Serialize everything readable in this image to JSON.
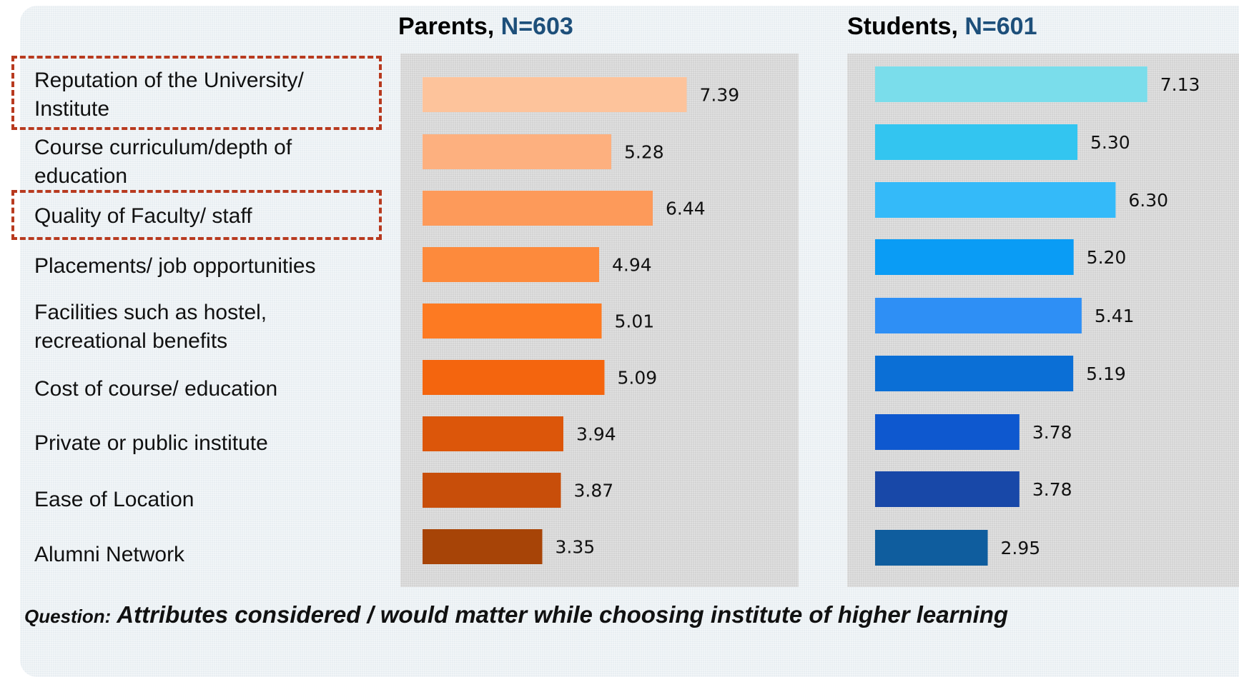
{
  "chart_data": [
    {
      "type": "bar",
      "title": "Parents,",
      "subtitle": "N=603",
      "categories": [
        "Reputation of the University/ Institute",
        "Course curriculum/depth of education",
        "Quality of Faculty/ staff",
        "Placements/ job opportunities",
        "Facilities such as hostel, recreational benefits",
        "Cost of course/ education",
        "Private or public institute",
        "Ease of  Location",
        "Alumni Network"
      ],
      "values": [
        7.39,
        5.28,
        6.44,
        4.94,
        5.01,
        5.09,
        3.94,
        3.87,
        3.35
      ],
      "value_labels": [
        "7.39",
        "5.28",
        "6.44",
        "4.94",
        "5.01",
        "5.09",
        "3.94",
        "3.87",
        "3.35"
      ],
      "colors": [
        "#fdc39b",
        "#fdb07f",
        "#fd9a5a",
        "#fd8a3c",
        "#fd7a22",
        "#f4650e",
        "#dc560a",
        "#c84e0a",
        "#a74407"
      ],
      "orientation": "horizontal"
    },
    {
      "type": "bar",
      "title": "Students,",
      "subtitle": "N=601",
      "categories": [
        "Reputation of the University/ Institute",
        "Course curriculum/depth of education",
        "Quality of Faculty/ staff",
        "Placements/ job opportunities",
        "Facilities such as hostel, recreational benefits",
        "Cost of course/ education",
        "Private or public institute",
        "Ease of  Location",
        "Alumni Network"
      ],
      "values": [
        7.13,
        5.3,
        6.3,
        5.2,
        5.41,
        5.19,
        3.78,
        3.78,
        2.95
      ],
      "value_labels": [
        "7.13",
        "5.30",
        "6.30",
        "5.20",
        "5.41",
        "5.19",
        "3.78",
        "3.78",
        "2.95"
      ],
      "colors": [
        "#7addeb",
        "#33c5f0",
        "#34baf9",
        "#0a9cf5",
        "#2e8ff5",
        "#0b6fd6",
        "#0e58cf",
        "#1848a8",
        "#0f5d9e"
      ],
      "orientation": "horizontal"
    }
  ],
  "categories_display": [
    "Reputation of the University/ Institute",
    "Course curriculum/depth of education",
    "Quality of Faculty/ staff",
    "Placements/ job opportunities",
    "Facilities such as hostel, recreational benefits",
    "Cost of course/ education",
    "Private or public institute",
    "Ease of  Location",
    "Alumni Network"
  ],
  "highlighted_categories": [
    "Reputation of the University/ Institute",
    "Quality of Faculty/ staff"
  ],
  "footer": {
    "question_prefix": "Question:",
    "question_text": "Attributes considered / would matter while choosing institute of higher learning"
  }
}
